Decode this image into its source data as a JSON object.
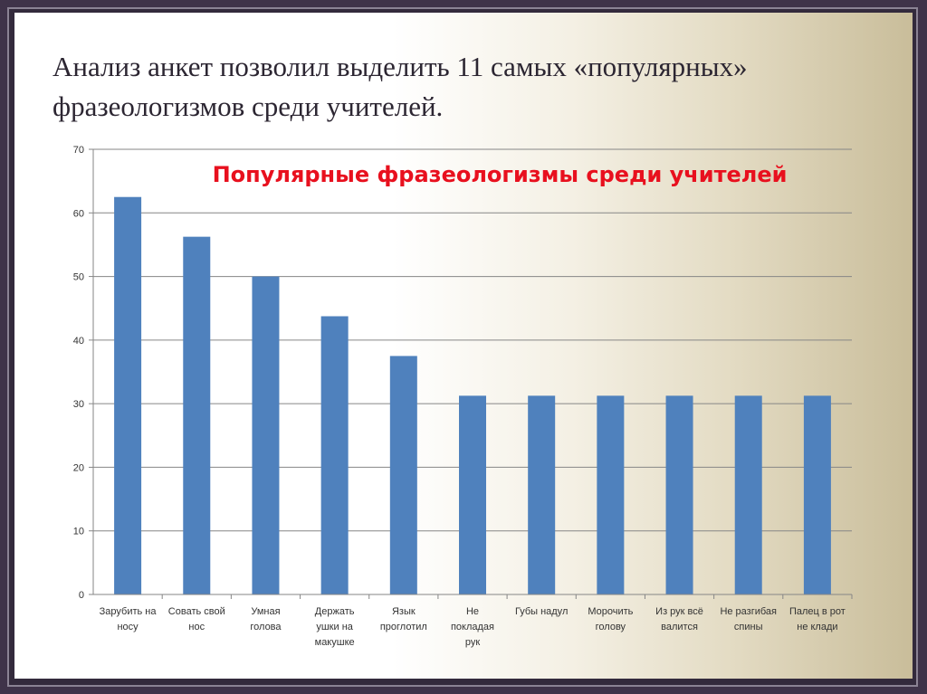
{
  "slide": {
    "title": "Анализ анкет позволил выделить 11 самых «популярных» фразеологизмов среди учителей."
  },
  "colors": {
    "bar": "#4f81bd",
    "chart_title": "#e8101e",
    "grid": "#868686"
  },
  "chart_data": {
    "type": "bar",
    "title": "Популярные фразеологизмы среди учителей",
    "categories": [
      [
        "Зарубить на",
        "носу"
      ],
      [
        "Совать свой",
        "нос"
      ],
      [
        "Умная",
        "голова"
      ],
      [
        "Держать",
        "ушки на",
        "макушке"
      ],
      [
        "Язык",
        "проглотил"
      ],
      [
        "Не",
        "покладая",
        "рук"
      ],
      [
        "Губы надул"
      ],
      [
        "Морочить",
        "голову"
      ],
      [
        "Из рук всё",
        "валится"
      ],
      [
        "Не разгибая",
        "спины"
      ],
      [
        "Палец в рот",
        "не клади"
      ]
    ],
    "values": [
      62.5,
      56.25,
      50,
      43.75,
      37.5,
      31.25,
      31.25,
      31.25,
      31.25,
      31.25,
      31.25
    ],
    "ylim": [
      0,
      70
    ],
    "yticks": [
      0,
      10,
      20,
      30,
      40,
      50,
      60,
      70
    ],
    "xlabel": "",
    "ylabel": "",
    "grid": true,
    "legend": "none"
  }
}
